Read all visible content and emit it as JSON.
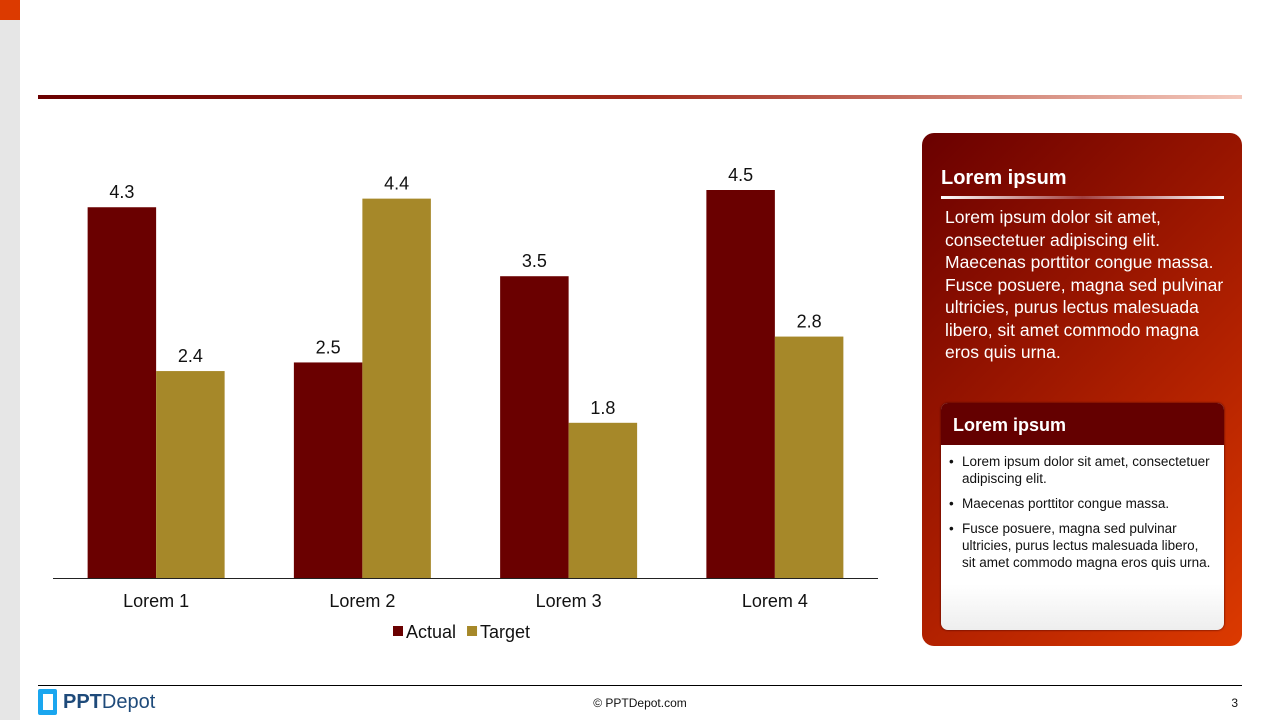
{
  "chart_data": {
    "type": "bar",
    "categories": [
      "Lorem 1",
      "Lorem 2",
      "Lorem 3",
      "Lorem 4"
    ],
    "series": [
      {
        "name": "Actual",
        "values": [
          4.3,
          2.5,
          3.5,
          4.5
        ],
        "color": "#6a0000"
      },
      {
        "name": "Target",
        "values": [
          2.4,
          4.4,
          1.8,
          2.8
        ],
        "color": "#a68829"
      }
    ],
    "ylim": [
      0,
      4.5
    ],
    "grid": false,
    "legend": "bottom"
  },
  "panel": {
    "title": "Lorem ipsum",
    "text": "Lorem ipsum dolor sit amet, consectetuer adipiscing elit. Maecenas porttitor congue massa. Fusce posuere, magna sed pulvinar ultricies, purus lectus malesuada libero, sit amet commodo magna eros quis urna.",
    "card": {
      "title": "Lorem ipsum",
      "bullets": [
        "Lorem ipsum dolor sit amet, consectetuer adipiscing elit.",
        "Maecenas porttitor congue massa.",
        "Fusce posuere, magna sed pulvinar ultricies, purus lectus malesuada libero, sit amet commodo magna eros quis urna."
      ]
    }
  },
  "footer": {
    "logo_bold": "PPT",
    "logo_rest": "Depot",
    "copyright": "© PPTDepot.com",
    "page": "3"
  }
}
